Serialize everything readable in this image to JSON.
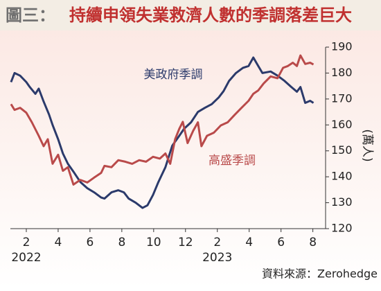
{
  "chart_data": {
    "type": "line",
    "figure_label": "圖三：",
    "title": "持續申領失業救濟人數的季調落差巨大",
    "y_unit": "(萬人)",
    "source": "資料來源：Zerohedge",
    "year_labels": [
      "2022",
      "2023"
    ],
    "xlim": [
      1,
      20.8
    ],
    "xticks": [
      2,
      4,
      6,
      8,
      10,
      12,
      {
        "value": 14,
        "label": "2"
      },
      {
        "value": 16,
        "label": "4"
      },
      {
        "value": 18,
        "label": "6"
      },
      {
        "value": 20,
        "label": "8"
      }
    ],
    "ylim": [
      120,
      190
    ],
    "yticks": [
      120,
      130,
      140,
      150,
      160,
      170,
      180,
      190
    ],
    "series": [
      {
        "name": "美政府季調",
        "color": "#2b3a6b",
        "x": [
          1.04,
          1.26,
          1.61,
          2,
          2.22,
          2.57,
          2.78,
          3.09,
          3.43,
          3.65,
          4,
          4.3,
          4.61,
          4.96,
          5.39,
          5.83,
          6.26,
          6.7,
          6.91,
          7.35,
          7.78,
          8.13,
          8.43,
          8.87,
          9.3,
          9.61,
          9.96,
          10.3,
          10.74,
          11.17,
          11.61,
          11.91,
          12.35,
          12.78,
          13.22,
          13.65,
          14.09,
          14.39,
          14.74,
          15.17,
          15.61,
          15.96,
          16.26,
          16.57,
          16.83,
          17.35,
          17.78,
          18.22,
          18.65,
          19,
          19.22,
          19.52,
          19.83,
          20.04
        ],
        "values": [
          176.5,
          180,
          179,
          176.5,
          174.6,
          172,
          174,
          169,
          164,
          160,
          154.5,
          149,
          145,
          142,
          138,
          135.6,
          134,
          132,
          131.6,
          134,
          134.8,
          134,
          131.6,
          130,
          128,
          129,
          133,
          138,
          143.7,
          152,
          155.8,
          158.5,
          161,
          165,
          166.6,
          168,
          170.6,
          173,
          177,
          180,
          182,
          182.7,
          186,
          182.7,
          180,
          180.6,
          179,
          177,
          174.6,
          172.8,
          174.6,
          168.5,
          169.3,
          168.5
        ]
      },
      {
        "name": "高盛季調",
        "color": "#b94a4a",
        "x": [
          1.04,
          1.26,
          1.61,
          2,
          2.35,
          2.78,
          3.09,
          3.35,
          3.65,
          4,
          4.3,
          4.61,
          4.96,
          5.39,
          5.83,
          6.26,
          6.7,
          6.91,
          7.35,
          7.78,
          8.22,
          8.65,
          9.09,
          9.52,
          9.96,
          10.39,
          10.74,
          11.04,
          11.35,
          11.61,
          11.83,
          12.13,
          12.48,
          12.78,
          13,
          13.35,
          13.78,
          14.22,
          14.65,
          15.09,
          15.52,
          15.96,
          16.26,
          16.57,
          16.91,
          17.35,
          17.78,
          18.13,
          18.43,
          18.74,
          19,
          19.22,
          19.52,
          19.83,
          20.04
        ],
        "values": [
          168,
          165.8,
          166.6,
          164.7,
          161,
          155.8,
          151.8,
          154.5,
          145,
          148.5,
          142.3,
          143.7,
          137,
          138.8,
          137.8,
          139.7,
          141.5,
          144.2,
          143.7,
          146.4,
          145.8,
          145,
          146.4,
          145.8,
          147.7,
          147,
          149,
          145,
          154.5,
          158.5,
          161.2,
          153,
          157.7,
          161,
          151.8,
          155.8,
          157,
          159.8,
          161,
          163.9,
          166.6,
          169.3,
          172,
          173.3,
          176,
          178.7,
          178,
          182,
          182.7,
          184,
          182.7,
          186.8,
          183.5,
          184,
          183.3
        ]
      }
    ]
  }
}
